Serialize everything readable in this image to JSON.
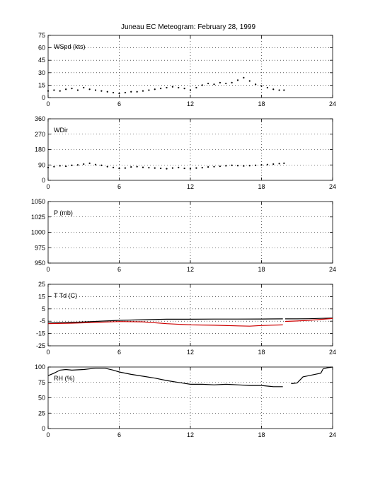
{
  "title": "Juneau EC Meteogram:  February 28, 1999",
  "chart_data": [
    {
      "type": "scatter",
      "label": "WSpd (kts)",
      "xlim": [
        0,
        24
      ],
      "ylim": [
        0,
        75
      ],
      "xticks": [
        0,
        6,
        12,
        18,
        24
      ],
      "yticks": [
        0,
        15,
        30,
        45,
        60,
        75
      ],
      "grid": true,
      "series": [
        {
          "color": "#000000",
          "marker": "dot",
          "x": [
            0,
            0.5,
            1,
            1.5,
            2,
            2.5,
            3,
            3.5,
            4,
            4.5,
            5,
            5.5,
            6,
            6.5,
            7,
            7.5,
            8,
            8.5,
            9,
            9.5,
            10,
            10.5,
            11,
            11.5,
            12,
            12.5,
            13,
            13.5,
            14,
            14.5,
            15,
            15.5,
            16,
            16.5,
            17,
            17.5,
            18,
            18.5,
            19,
            19.5,
            19.9
          ],
          "y": [
            8,
            9,
            8,
            10,
            11,
            9,
            12,
            10,
            9,
            8,
            7,
            6,
            5,
            6,
            7,
            7,
            8,
            9,
            10,
            11,
            12,
            13,
            12,
            11,
            9,
            12,
            15,
            17,
            16,
            18,
            17,
            18,
            21,
            24,
            20,
            16,
            14,
            12,
            10,
            9,
            9
          ]
        }
      ]
    },
    {
      "type": "scatter",
      "label": "WDir",
      "xlim": [
        0,
        24
      ],
      "ylim": [
        0,
        360
      ],
      "xticks": [
        0,
        6,
        12,
        18,
        24
      ],
      "yticks": [
        0,
        90,
        180,
        270,
        360
      ],
      "grid": true,
      "series": [
        {
          "color": "#000000",
          "marker": "dot",
          "x": [
            0,
            0.5,
            1,
            1.5,
            2,
            2.5,
            3,
            3.5,
            4,
            4.5,
            5,
            5.5,
            6,
            6.5,
            7,
            7.5,
            8,
            8.5,
            9,
            9.5,
            10,
            10.5,
            11,
            11.5,
            12,
            12.5,
            13,
            13.5,
            14,
            14.5,
            15,
            15.5,
            16,
            16.5,
            17,
            17.5,
            18,
            18.5,
            19,
            19.5,
            19.9
          ],
          "y": [
            75,
            80,
            85,
            82,
            88,
            90,
            95,
            100,
            92,
            88,
            80,
            75,
            70,
            72,
            78,
            80,
            76,
            74,
            72,
            70,
            68,
            72,
            75,
            70,
            68,
            72,
            74,
            78,
            80,
            82,
            85,
            88,
            86,
            84,
            86,
            88,
            90,
            92,
            95,
            98,
            100
          ]
        }
      ]
    },
    {
      "type": "line",
      "label": "P (mb)",
      "xlim": [
        0,
        24
      ],
      "ylim": [
        950,
        1050
      ],
      "xticks": [
        0,
        6,
        12,
        18,
        24
      ],
      "yticks": [
        950,
        975,
        1000,
        1025,
        1050
      ],
      "grid": true,
      "series": []
    },
    {
      "type": "line",
      "label": "T Td (C)",
      "xlim": [
        0,
        24
      ],
      "ylim": [
        -25,
        25
      ],
      "xticks": [
        0,
        6,
        12,
        18,
        24
      ],
      "yticks": [
        -25,
        -15,
        -5,
        5,
        15,
        25
      ],
      "grid": true,
      "series": [
        {
          "color": "#000000",
          "x": [
            0,
            2,
            4,
            6,
            8,
            10,
            12,
            14,
            16,
            18,
            19.8
          ],
          "y": [
            -6.5,
            -6,
            -5.2,
            -4.3,
            -3.8,
            -3.4,
            -3.4,
            -3.3,
            -3.3,
            -3.2,
            -3.1
          ]
        },
        {
          "color": "#000000",
          "x": [
            20,
            21,
            22,
            23,
            24
          ],
          "y": [
            -3.1,
            -3.1,
            -3,
            -2.7,
            -2.4
          ]
        },
        {
          "color": "#cc0000",
          "x": [
            0,
            2,
            4,
            6,
            8,
            10,
            12,
            14,
            16,
            17,
            18,
            19.8
          ],
          "y": [
            -7,
            -6.6,
            -6,
            -5.3,
            -5.5,
            -7,
            -8,
            -8.3,
            -8.8,
            -9,
            -8.5,
            -8
          ]
        },
        {
          "color": "#cc0000",
          "x": [
            20,
            21,
            22,
            23,
            24
          ],
          "y": [
            -5.2,
            -4.8,
            -4.3,
            -3.5,
            -2.8
          ]
        }
      ]
    },
    {
      "type": "line",
      "label": "RH (%)",
      "xlim": [
        0,
        24
      ],
      "ylim": [
        0,
        100
      ],
      "xticks": [
        0,
        6,
        12,
        18,
        24
      ],
      "yticks": [
        0,
        25,
        50,
        75,
        100
      ],
      "grid": true,
      "series": [
        {
          "color": "#000000",
          "x": [
            0,
            0.5,
            1,
            1.5,
            2,
            3,
            4,
            4.8,
            5.5,
            6,
            7,
            8,
            9,
            10,
            11,
            12,
            13,
            14,
            15,
            16,
            17,
            18,
            19,
            19.8
          ],
          "y": [
            86,
            90,
            95,
            96,
            95,
            96,
            98,
            98,
            95,
            92,
            88,
            85,
            82,
            78,
            75,
            72,
            72,
            71,
            72,
            71,
            70,
            70,
            68,
            68
          ]
        },
        {
          "color": "#000000",
          "x": [
            20.5,
            21,
            21.5,
            22,
            22.5,
            23,
            23.2,
            23.6,
            24
          ],
          "y": [
            73,
            74,
            84,
            86,
            88,
            90,
            97,
            99,
            100
          ]
        }
      ]
    }
  ]
}
